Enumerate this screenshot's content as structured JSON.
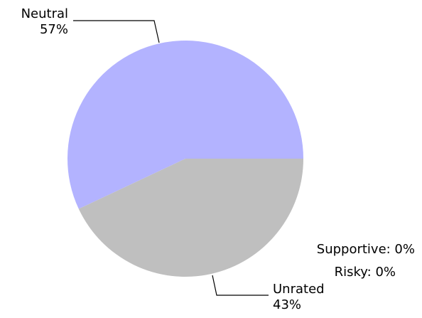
{
  "chart_data": {
    "type": "pie",
    "title": "",
    "start_angle_deg": 0,
    "direction": "counterclockwise",
    "slices": [
      {
        "name": "Neutral",
        "value": 57,
        "label": "57%",
        "color": "#b3b3ff"
      },
      {
        "name": "Unrated",
        "value": 43,
        "label": "43%",
        "color": "#bfbfbf"
      },
      {
        "name": "Supportive",
        "value": 0,
        "label": "Supportive: 0%"
      },
      {
        "name": "Risky",
        "value": 0,
        "label": "Risky: 0%"
      }
    ]
  }
}
